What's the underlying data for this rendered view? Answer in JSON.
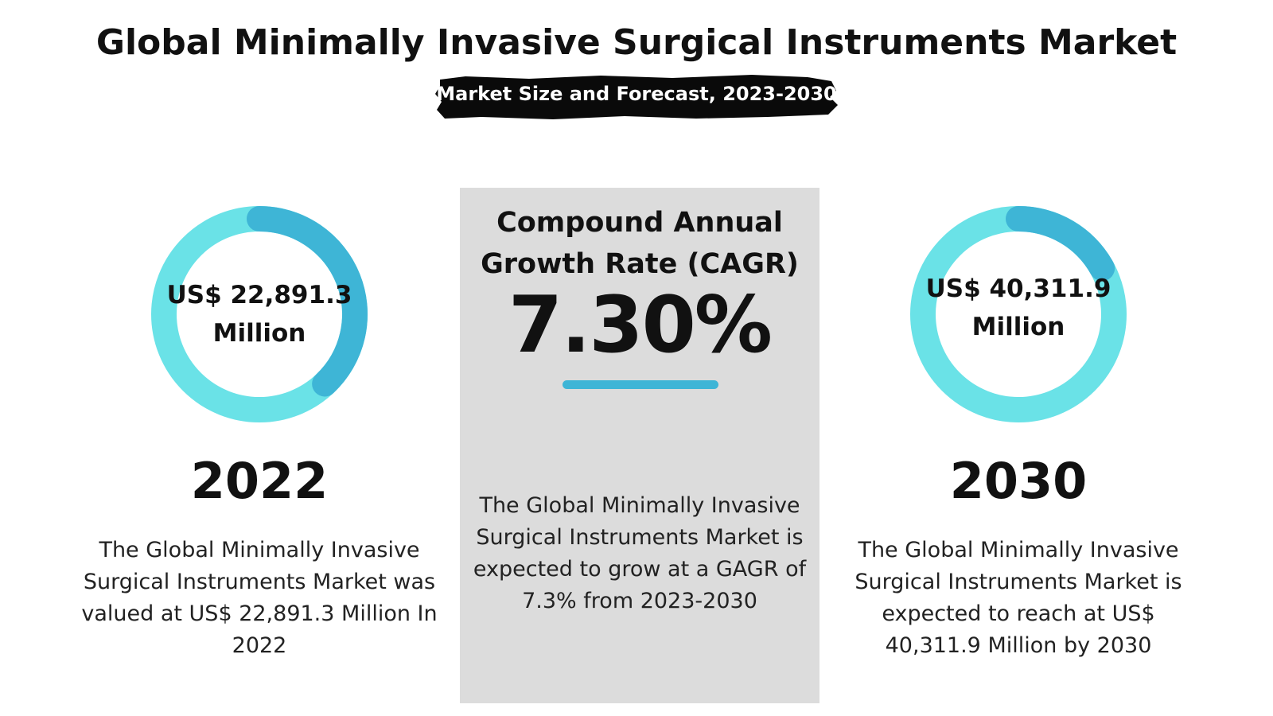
{
  "title": "Global Minimally Invasive Surgical Instruments Market",
  "subtitle": "Market Size and Forecast, 2023-2030",
  "colors": {
    "ring_light": "#6ae2e7",
    "ring_dark": "#3eb5d6",
    "panel_bg": "#dcdcdc",
    "accent_bar": "#3eb5d6",
    "brush": "#0a0a0a"
  },
  "left": {
    "value_line1": "US$ 22,891.3",
    "value_line2": "Million",
    "year": "2022",
    "description": "The Global Minimally Invasive Surgical Instruments Market was valued at US$ 22,891.3 Million In 2022",
    "ring_dark_fraction": 0.38
  },
  "center": {
    "cagr_label": "Compound Annual Growth Rate (CAGR)",
    "cagr_value": "7.30%",
    "description": "The Global Minimally Invasive Surgical Instruments Market is expected to grow at a GAGR of 7.3% from 2023-2030"
  },
  "right": {
    "value_line1": "US$ 40,311.9",
    "value_line2": "Million",
    "year": "2030",
    "description": "The Global Minimally Invasive Surgical Instruments Market is expected to reach at US$ 40,311.9 Million by 2030",
    "ring_dark_fraction": 0.17
  }
}
